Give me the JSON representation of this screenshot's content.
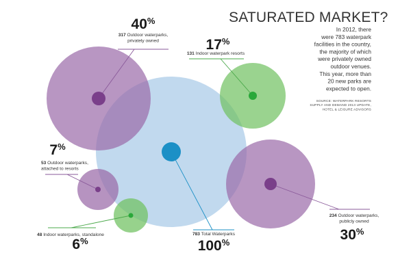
{
  "chart_data": {
    "type": "bubble",
    "title": "SATURATED MARKET?",
    "description": [
      "In 2012, there",
      "were 783 waterpark",
      "facilities in the country,",
      "the majority of which",
      "were privately owned",
      "outdoor venues.",
      "This year, more than",
      "20 new parks are",
      "expected to open."
    ],
    "source": [
      "SOURCE: WATERPARK RESORTS",
      "SUPPLY AND DEMAND 2013 UPDATE,",
      "HOTEL & LEISURE ADVISORS"
    ],
    "bubbles": [
      {
        "id": "total",
        "count": "783",
        "label_lines": [
          "Total Waterparks"
        ],
        "percent": "100%",
        "value": 783,
        "color": "#a9cbe8",
        "dot": "#1c90c6",
        "line": "#1c90c6"
      },
      {
        "id": "outdoor-private",
        "count": "317",
        "label_lines": [
          "Outdoor waterparks,",
          "privately owned"
        ],
        "percent": "40%",
        "value": 317,
        "color": "#9a6aa8",
        "dot": "#7a3f8a",
        "line": "#8a5a9a"
      },
      {
        "id": "indoor-resorts",
        "count": "131",
        "label_lines": [
          "Indoor waterpark resorts"
        ],
        "percent": "17%",
        "value": 131,
        "color": "#6fc060",
        "dot": "#2aa83a",
        "line": "#4aa84a"
      },
      {
        "id": "outdoor-public",
        "count": "234",
        "label_lines": [
          "Outdoor waterparks,",
          "publicly owned"
        ],
        "percent": "30%",
        "value": 234,
        "color": "#9a6aa8",
        "dot": "#7a3f8a",
        "line": "#8a5a9a"
      },
      {
        "id": "outdoor-resorts",
        "count": "53",
        "label_lines": [
          "Outdoor waterparks,",
          "attached to resorts"
        ],
        "percent": "7%",
        "value": 53,
        "color": "#9a6aa8",
        "dot": "#7a3f8a",
        "line": "#8a5a9a"
      },
      {
        "id": "indoor-standalone",
        "count": "48",
        "label_lines": [
          "Indoor waterparks, standalone"
        ],
        "percent": "6%",
        "value": 48,
        "color": "#6fc060",
        "dot": "#2aa83a",
        "line": "#4aa84a"
      }
    ]
  }
}
